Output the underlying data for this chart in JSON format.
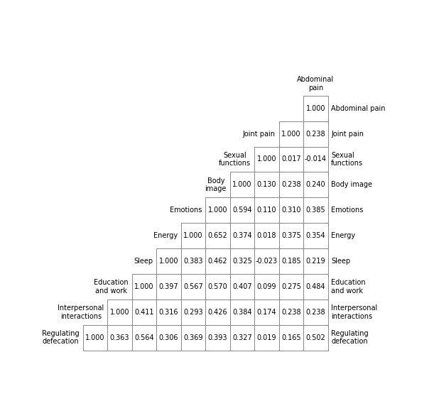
{
  "rows_data": [
    [
      1.0
    ],
    [
      1.0,
      0.238
    ],
    [
      1.0,
      0.017,
      -0.014
    ],
    [
      1.0,
      0.13,
      0.238,
      0.24
    ],
    [
      1.0,
      0.594,
      0.11,
      0.31,
      0.385
    ],
    [
      1.0,
      0.652,
      0.374,
      0.018,
      0.375,
      0.354
    ],
    [
      1.0,
      0.383,
      0.462,
      0.325,
      -0.023,
      0.185,
      0.219
    ],
    [
      1.0,
      0.397,
      0.567,
      0.57,
      0.407,
      0.099,
      0.275,
      0.484
    ],
    [
      1.0,
      0.411,
      0.316,
      0.293,
      0.426,
      0.384,
      0.174,
      0.238,
      0.238
    ],
    [
      1.0,
      0.363,
      0.564,
      0.306,
      0.369,
      0.393,
      0.327,
      0.019,
      0.165,
      0.502
    ]
  ],
  "right_labels": [
    "Abdominal pain",
    "Joint pain",
    "Sexual\nfunctions",
    "Body image",
    "Emotions",
    "Energy",
    "Sleep",
    "Education\nand work",
    "Interpersonal\ninteractions",
    "Regulating\ndefecation"
  ],
  "col_labels": [
    "Regulating\ndefecation",
    "Interpersonal\ninteractions",
    "Education\nand work",
    "Sleep",
    "Energy",
    "Emotions",
    "Body\nimage",
    "Sexual\nfunctions",
    "Joint pain",
    "Abdominal\npain"
  ],
  "bg_color": "#ffffff",
  "line_color": "#888888",
  "text_color": "#000000",
  "fontsize": 7.0
}
